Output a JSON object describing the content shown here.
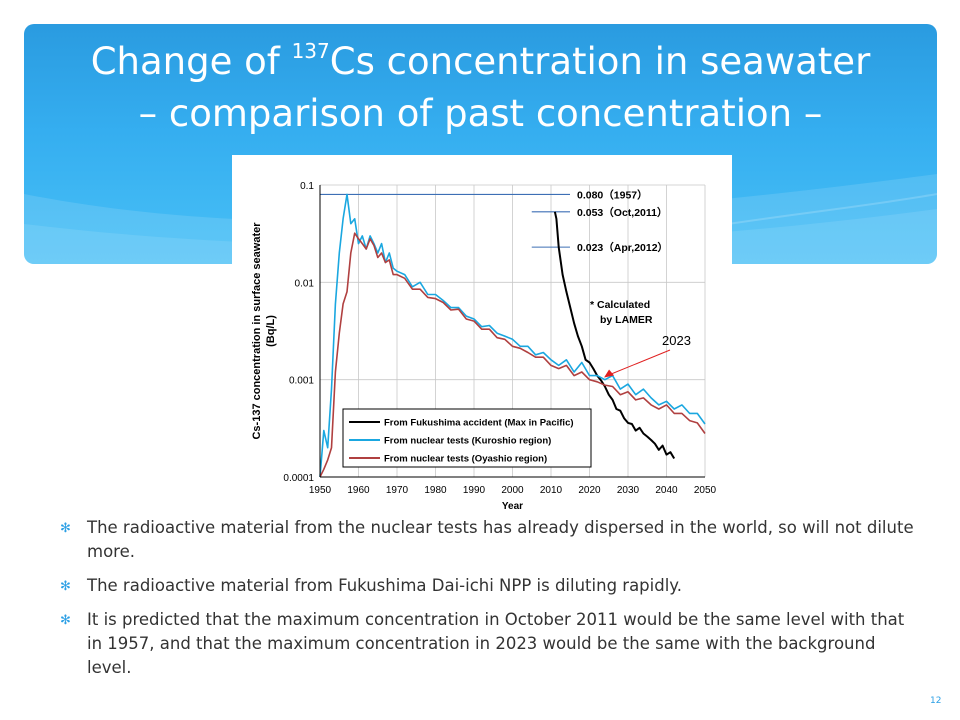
{
  "slide": {
    "title_line1_pre": "Change of ",
    "title_sup": "137",
    "title_line1_post": "Cs concentration in seawater",
    "title_line2": "– comparison of past concentration –",
    "page_number": "12",
    "colors": {
      "header": "#33a8ec",
      "bullet": "#2b9fe5",
      "body_text": "#333333"
    }
  },
  "bullets": [
    "The radioactive material from the nuclear tests has already dispersed in the world, so will not dilute more.",
    "The radioactive material from Fukushima Dai-ichi NPP is diluting rapidly.",
    "It is predicted that the maximum concentration in October 2011 would be the same level with that in 1957, and that the maximum concentration in 2023 would be the same with the background level."
  ],
  "chart_data": {
    "type": "line",
    "xlabel": "Year",
    "ylabel_line1": "Cs-137 concentration in surface seawater",
    "ylabel_line2": "(Bq/L)",
    "xlim": [
      1950,
      2050
    ],
    "ylim": [
      0.0001,
      0.1
    ],
    "yscale": "log",
    "x_ticks": [
      "1950",
      "1960",
      "1970",
      "1980",
      "1990",
      "2000",
      "2010",
      "2020",
      "2030",
      "2040",
      "2050"
    ],
    "y_ticks": [
      {
        "label": "0.1",
        "value": 0.1
      },
      {
        "label": "0.01",
        "value": 0.01
      },
      {
        "label": "0.001",
        "value": 0.001
      },
      {
        "label": "0.0001",
        "value": 0.0001
      }
    ],
    "grid": true,
    "legend_position": "bottom-left",
    "series": [
      {
        "name": "From Fukushima accident (Max in Pacific)",
        "color": "#000000",
        "x": [
          2011,
          2011.4,
          2012,
          2013,
          2014,
          2015,
          2016,
          2017,
          2018,
          2019,
          2020,
          2021,
          2022,
          2023,
          2024,
          2025,
          2026,
          2027,
          2028,
          2029,
          2030,
          2031,
          2032,
          2033,
          2034,
          2035,
          2036,
          2037,
          2038,
          2039,
          2040,
          2041,
          2042
        ],
        "y": [
          0.053,
          0.045,
          0.023,
          0.012,
          0.008,
          0.0055,
          0.0038,
          0.0028,
          0.0022,
          0.0016,
          0.0015,
          0.0013,
          0.0011,
          0.00098,
          0.00085,
          0.0007,
          0.00062,
          0.0005,
          0.00048,
          0.0004,
          0.00036,
          0.00035,
          0.0003,
          0.00032,
          0.00028,
          0.00026,
          0.00024,
          0.00022,
          0.00019,
          0.00021,
          0.00017,
          0.00018,
          0.000155
        ]
      },
      {
        "name": "From nuclear tests (Kuroshio region)",
        "color": "#1aa7e0",
        "x": [
          1950,
          1951,
          1952,
          1953,
          1954,
          1955,
          1956,
          1957,
          1958,
          1959,
          1960,
          1961,
          1962,
          1963,
          1964,
          1965,
          1966,
          1967,
          1968,
          1969,
          1970,
          1972,
          1974,
          1976,
          1978,
          1980,
          1982,
          1984,
          1986,
          1988,
          1990,
          1992,
          1994,
          1996,
          1998,
          2000,
          2002,
          2004,
          2006,
          2008,
          2010,
          2012,
          2014,
          2016,
          2018,
          2020,
          2022,
          2024,
          2026,
          2028,
          2030,
          2032,
          2034,
          2036,
          2038,
          2040,
          2042,
          2044,
          2046,
          2048,
          2050
        ],
        "y": [
          0.0001,
          0.0003,
          0.0002,
          0.0008,
          0.006,
          0.02,
          0.045,
          0.08,
          0.04,
          0.045,
          0.025,
          0.03,
          0.022,
          0.03,
          0.025,
          0.02,
          0.025,
          0.016,
          0.02,
          0.014,
          0.013,
          0.012,
          0.009,
          0.01,
          0.0075,
          0.0075,
          0.0065,
          0.0055,
          0.0055,
          0.0045,
          0.0042,
          0.0035,
          0.0036,
          0.003,
          0.0028,
          0.0026,
          0.0022,
          0.0022,
          0.0018,
          0.0019,
          0.0016,
          0.0014,
          0.0016,
          0.0012,
          0.0015,
          0.0011,
          0.0011,
          0.001,
          0.0011,
          0.0008,
          0.0009,
          0.0007,
          0.0008,
          0.00065,
          0.00055,
          0.0006,
          0.0005,
          0.00055,
          0.00045,
          0.00045,
          0.00035
        ]
      },
      {
        "name": "From nuclear tests (Oyashio region)",
        "color": "#b04040",
        "x": [
          1950,
          1951,
          1952,
          1953,
          1954,
          1955,
          1956,
          1957,
          1958,
          1959,
          1960,
          1961,
          1962,
          1963,
          1964,
          1965,
          1966,
          1967,
          1968,
          1969,
          1970,
          1972,
          1974,
          1976,
          1978,
          1980,
          1982,
          1984,
          1986,
          1988,
          1990,
          1992,
          1994,
          1996,
          1998,
          2000,
          2002,
          2004,
          2006,
          2008,
          2010,
          2012,
          2014,
          2016,
          2018,
          2020,
          2022,
          2024,
          2026,
          2028,
          2030,
          2032,
          2034,
          2036,
          2038,
          2040,
          2042,
          2044,
          2046,
          2048,
          2050
        ],
        "y": [
          0.0001,
          0.00012,
          0.00015,
          0.0002,
          0.0012,
          0.003,
          0.006,
          0.008,
          0.02,
          0.032,
          0.028,
          0.025,
          0.022,
          0.028,
          0.024,
          0.018,
          0.02,
          0.016,
          0.017,
          0.012,
          0.012,
          0.011,
          0.0085,
          0.0085,
          0.007,
          0.0068,
          0.0062,
          0.0052,
          0.0053,
          0.0042,
          0.004,
          0.0033,
          0.0033,
          0.0027,
          0.0026,
          0.0022,
          0.0021,
          0.0019,
          0.0017,
          0.0017,
          0.0014,
          0.0013,
          0.0014,
          0.0011,
          0.0012,
          0.001,
          0.00095,
          0.00088,
          0.00085,
          0.0007,
          0.00075,
          0.00062,
          0.00065,
          0.00055,
          0.0005,
          0.00055,
          0.00045,
          0.00045,
          0.00038,
          0.00036,
          0.00028
        ]
      }
    ],
    "reference_lines": [
      {
        "label": "0.080（1957）",
        "value": 0.08,
        "x_start": 1950
      },
      {
        "label": "0.053（Oct,2011）",
        "value": 0.053,
        "x_start": 2005
      },
      {
        "label": "0.023（Apr,2012）",
        "value": 0.023,
        "x_start": 2005
      }
    ],
    "note_line1": "* Calculated",
    "note_line2": "by LAMER",
    "annotation": {
      "label": "2023",
      "x": 2023,
      "y": 0.00098
    }
  }
}
